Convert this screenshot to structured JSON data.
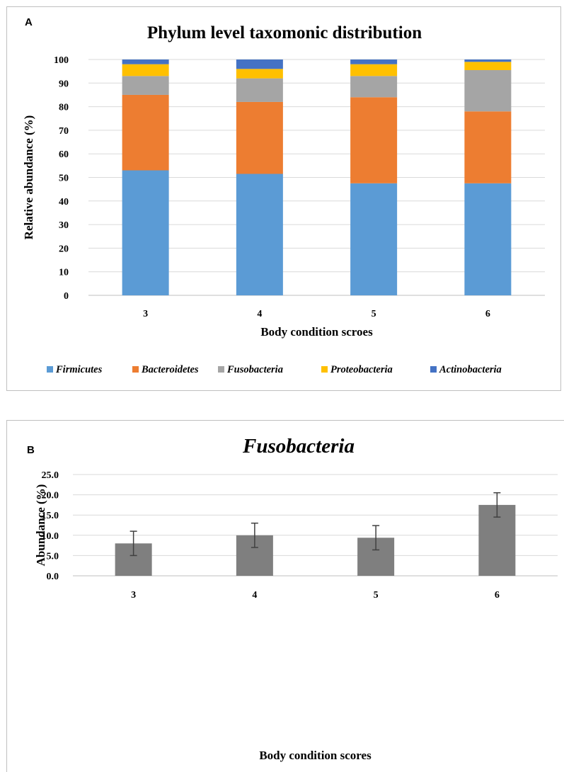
{
  "panels": {
    "a_label": "A",
    "b_label": "B"
  },
  "chart_data": [
    {
      "type": "bar",
      "stacked": true,
      "title": "Phylum level taxomonic distribution",
      "xlabel": "Body condition scroes",
      "ylabel": "Relative abundance (%)",
      "categories": [
        "3",
        "4",
        "5",
        "6"
      ],
      "ylim": [
        0,
        100
      ],
      "yticks": [
        0,
        10,
        20,
        30,
        40,
        50,
        60,
        70,
        80,
        90,
        100
      ],
      "grid": true,
      "legend_position": "bottom",
      "series": [
        {
          "name": "Firmicutes",
          "color": "#5b9bd5",
          "values": [
            53,
            51.5,
            47.5,
            47.5
          ]
        },
        {
          "name": "Bacteroidetes",
          "color": "#ed7d31",
          "values": [
            32,
            30.5,
            36.5,
            30.5
          ]
        },
        {
          "name": "Fusobacteria",
          "color": "#a5a5a5",
          "values": [
            8,
            10,
            9,
            17.5
          ]
        },
        {
          "name": "Proteobacteria",
          "color": "#ffc000",
          "values": [
            5,
            4,
            5,
            3.5
          ]
        },
        {
          "name": "Actinobacteria",
          "color": "#4472c4",
          "values": [
            2,
            4,
            2,
            1
          ]
        }
      ]
    },
    {
      "type": "bar",
      "title": "Fusobacteria",
      "xlabel": "Body condition scores",
      "ylabel": "Abundance (%)",
      "categories": [
        "3",
        "4",
        "5",
        "6"
      ],
      "values": [
        8.0,
        10.0,
        9.4,
        17.5
      ],
      "error": [
        3.0,
        3.0,
        3.0,
        3.0
      ],
      "ylim": [
        0,
        25
      ],
      "yticks": [
        "0.0",
        "5.0",
        "10.0",
        "15.0",
        "20.0",
        "25.0"
      ],
      "grid": true,
      "bar_color": "#7f7f7f",
      "error_color": "#404040"
    }
  ]
}
